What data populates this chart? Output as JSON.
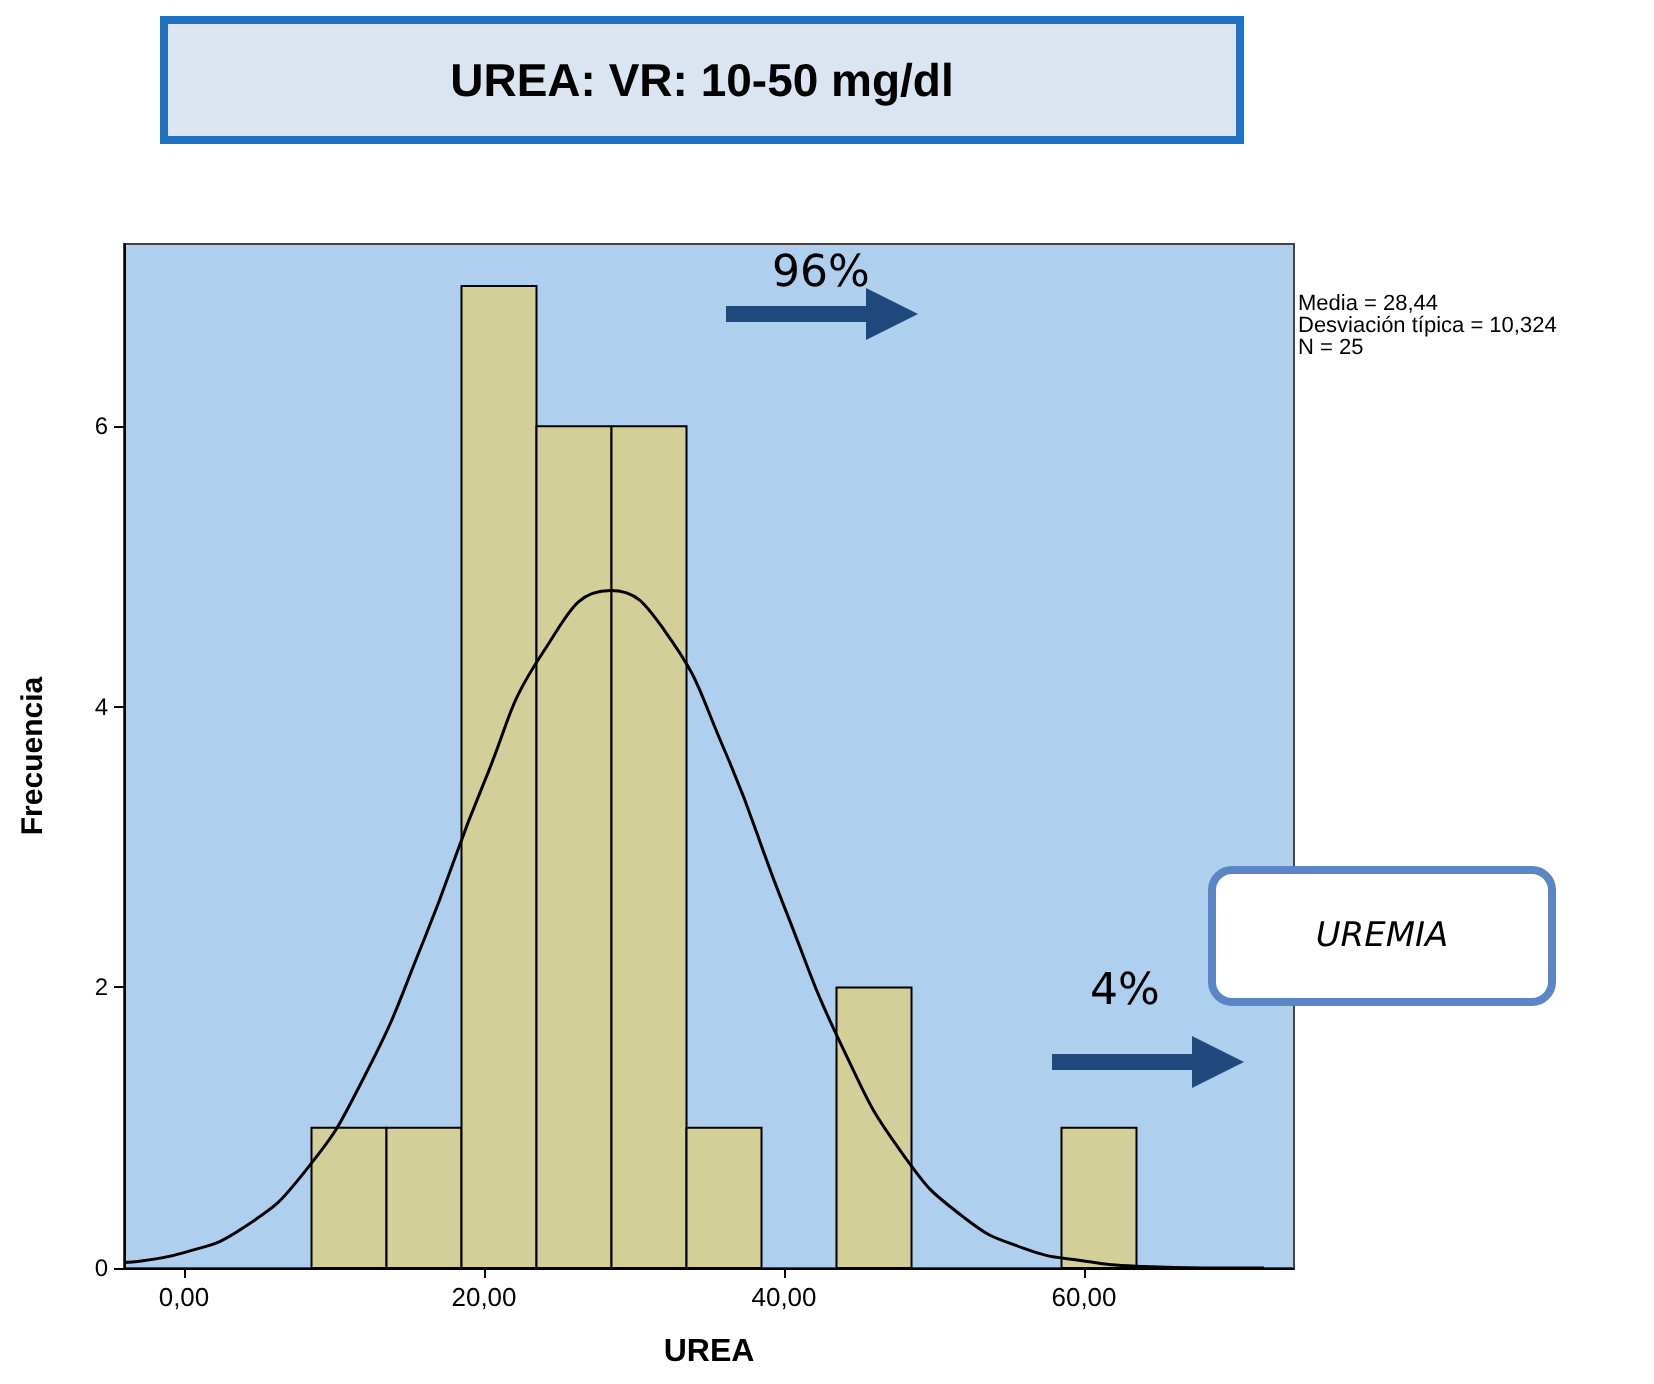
{
  "chart_data": {
    "type": "histogram",
    "title": "UREA: VR: 10-50 mg/dl",
    "xlabel": "UREA",
    "ylabel": "Frecuencia",
    "annotations": [
      "Media = 28,44",
      "Desviación típica = 10,324",
      "N = 25",
      "96%",
      "4%",
      "UREMIA"
    ],
    "bins": [
      8.5,
      13.5,
      18.5,
      23.5,
      28.5,
      33.5,
      38.5,
      43.5,
      48.5,
      53.5,
      58.5,
      63.5
    ],
    "series": [
      {
        "color": "#d3cf98",
        "values": [
          1,
          1,
          7,
          6,
          6,
          1,
          0,
          2,
          0,
          0,
          1
        ]
      },
      {
        "type": "line",
        "color": "#000000",
        "marker": "none",
        "x": [
          -4,
          0,
          4,
          8,
          12,
          16,
          20,
          24,
          28.44,
          32,
          36,
          40,
          44,
          48,
          52,
          56,
          60,
          64,
          68,
          72
        ],
        "values": [
          0.04,
          0.11,
          0.29,
          0.68,
          1.36,
          2.34,
          3.46,
          4.4,
          4.83,
          4.55,
          3.7,
          2.58,
          1.55,
          0.8,
          0.36,
          0.14,
          0.05,
          0.01,
          0,
          0
        ]
      }
    ],
    "xlim": [
      -4,
      74
    ],
    "xticks": [
      {
        "value": 0,
        "label": "0,00"
      },
      {
        "value": 20,
        "label": "20,00"
      },
      {
        "value": 40,
        "label": "40,00"
      },
      {
        "value": 60,
        "label": "60,00"
      }
    ],
    "ylim": [
      0,
      7.3
    ],
    "yticks": [
      0,
      2,
      4,
      6
    ],
    "grid": false
  }
}
